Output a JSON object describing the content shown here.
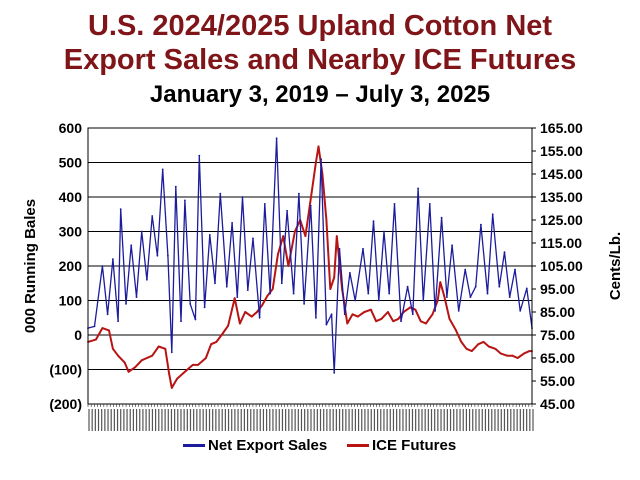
{
  "title_line1": "U.S. 2024/2025 Upland Cotton Net",
  "title_line2": "Export Sales and Nearby ICE Futures",
  "subtitle": "January 3, 2019 – July 3, 2025",
  "colors": {
    "title": "#7f1518",
    "net_export": "#1c1c9c",
    "ice": "#b81414"
  },
  "chart_data": {
    "type": "line",
    "left_axis": {
      "label": "000 Running Bales",
      "ticks": [
        "600",
        "500",
        "400",
        "300",
        "200",
        "100",
        "0",
        "(100)",
        "(200)"
      ],
      "ylim": [
        -200,
        600
      ]
    },
    "right_axis": {
      "label": "Cents/Lb.",
      "ticks": [
        "165.00",
        "155.00",
        "145.00",
        "135.00",
        "125.00",
        "115.00",
        "105.00",
        "95.00",
        "85.00",
        "75.00",
        "65.00",
        "55.00",
        "45.00"
      ],
      "ylim": [
        45,
        165
      ]
    },
    "x_range": [
      "2019-01-03",
      "2025-07-03"
    ],
    "grid": "horizontal",
    "legend_position": "bottom",
    "series": [
      {
        "name": "Net Export Sales",
        "axis": "left",
        "points": [
          [
            "2019-01-03",
            20
          ],
          [
            "2019-02-07",
            25
          ],
          [
            "2019-03-21",
            200
          ],
          [
            "2019-04-18",
            60
          ],
          [
            "2019-05-16",
            220
          ],
          [
            "2019-06-13",
            40
          ],
          [
            "2019-06-27",
            365
          ],
          [
            "2019-07-25",
            90
          ],
          [
            "2019-08-22",
            260
          ],
          [
            "2019-09-19",
            110
          ],
          [
            "2019-10-17",
            300
          ],
          [
            "2019-11-14",
            160
          ],
          [
            "2019-12-12",
            345
          ],
          [
            "2020-01-09",
            230
          ],
          [
            "2020-02-06",
            480
          ],
          [
            "2020-03-05",
            230
          ],
          [
            "2020-03-26",
            -50
          ],
          [
            "2020-04-16",
            430
          ],
          [
            "2020-05-14",
            40
          ],
          [
            "2020-06-04",
            390
          ],
          [
            "2020-07-02",
            90
          ],
          [
            "2020-07-30",
            45
          ],
          [
            "2020-08-20",
            520
          ],
          [
            "2020-09-17",
            80
          ],
          [
            "2020-10-15",
            290
          ],
          [
            "2020-11-12",
            150
          ],
          [
            "2020-12-10",
            410
          ],
          [
            "2021-01-14",
            140
          ],
          [
            "2021-02-11",
            325
          ],
          [
            "2021-03-11",
            110
          ],
          [
            "2021-04-08",
            400
          ],
          [
            "2021-05-06",
            130
          ],
          [
            "2021-06-03",
            280
          ],
          [
            "2021-07-08",
            50
          ],
          [
            "2021-08-05",
            380
          ],
          [
            "2021-09-02",
            120
          ],
          [
            "2021-10-07",
            570
          ],
          [
            "2021-11-04",
            150
          ],
          [
            "2021-12-02",
            360
          ],
          [
            "2022-01-06",
            120
          ],
          [
            "2022-02-03",
            410
          ],
          [
            "2022-03-03",
            90
          ],
          [
            "2022-04-07",
            375
          ],
          [
            "2022-05-05",
            50
          ],
          [
            "2022-06-02",
            510
          ],
          [
            "2022-06-30",
            30
          ],
          [
            "2022-07-28",
            60
          ],
          [
            "2022-08-11",
            -110
          ],
          [
            "2022-09-08",
            250
          ],
          [
            "2022-10-06",
            60
          ],
          [
            "2022-11-03",
            180
          ],
          [
            "2022-12-01",
            100
          ],
          [
            "2023-01-12",
            250
          ],
          [
            "2023-02-09",
            120
          ],
          [
            "2023-03-09",
            330
          ],
          [
            "2023-04-06",
            100
          ],
          [
            "2023-05-04",
            300
          ],
          [
            "2023-06-01",
            120
          ],
          [
            "2023-06-29",
            380
          ],
          [
            "2023-08-03",
            40
          ],
          [
            "2023-09-07",
            140
          ],
          [
            "2023-10-05",
            60
          ],
          [
            "2023-11-02",
            425
          ],
          [
            "2023-11-30",
            100
          ],
          [
            "2024-01-04",
            380
          ],
          [
            "2024-02-01",
            70
          ],
          [
            "2024-03-07",
            340
          ],
          [
            "2024-04-04",
            110
          ],
          [
            "2024-05-02",
            260
          ],
          [
            "2024-06-06",
            70
          ],
          [
            "2024-07-11",
            190
          ],
          [
            "2024-08-08",
            110
          ],
          [
            "2024-09-05",
            140
          ],
          [
            "2024-10-03",
            320
          ],
          [
            "2024-11-07",
            120
          ],
          [
            "2024-12-05",
            350
          ],
          [
            "2025-01-09",
            140
          ],
          [
            "2025-02-06",
            240
          ],
          [
            "2025-03-06",
            110
          ],
          [
            "2025-04-03",
            190
          ],
          [
            "2025-05-01",
            70
          ],
          [
            "2025-06-05",
            135
          ],
          [
            "2025-07-03",
            20
          ]
        ]
      },
      {
        "name": "ICE Futures",
        "axis": "right",
        "points": [
          [
            "2019-01-03",
            72
          ],
          [
            "2019-02-14",
            73
          ],
          [
            "2019-03-21",
            78
          ],
          [
            "2019-04-25",
            77
          ],
          [
            "2019-05-16",
            69
          ],
          [
            "2019-06-13",
            66
          ],
          [
            "2019-07-18",
            63
          ],
          [
            "2019-08-08",
            59
          ],
          [
            "2019-09-12",
            61
          ],
          [
            "2019-10-17",
            64
          ],
          [
            "2019-11-14",
            65
          ],
          [
            "2019-12-12",
            66
          ],
          [
            "2020-01-16",
            70
          ],
          [
            "2020-02-20",
            69
          ],
          [
            "2020-03-12",
            58
          ],
          [
            "2020-03-26",
            52
          ],
          [
            "2020-04-23",
            56
          ],
          [
            "2020-06-04",
            59
          ],
          [
            "2020-07-16",
            62
          ],
          [
            "2020-08-13",
            62
          ],
          [
            "2020-09-24",
            65
          ],
          [
            "2020-10-22",
            71
          ],
          [
            "2020-11-19",
            72
          ],
          [
            "2020-12-17",
            75
          ],
          [
            "2021-01-21",
            79
          ],
          [
            "2021-02-25",
            91
          ],
          [
            "2021-03-25",
            80
          ],
          [
            "2021-04-22",
            85
          ],
          [
            "2021-05-27",
            83
          ],
          [
            "2021-06-24",
            85
          ],
          [
            "2021-07-22",
            88
          ],
          [
            "2021-08-19",
            92
          ],
          [
            "2021-09-16",
            95
          ],
          [
            "2021-10-14",
            110
          ],
          [
            "2021-11-11",
            118
          ],
          [
            "2021-12-09",
            105
          ],
          [
            "2022-01-13",
            120
          ],
          [
            "2022-02-10",
            125
          ],
          [
            "2022-03-10",
            118
          ],
          [
            "2022-04-14",
            138
          ],
          [
            "2022-05-05",
            150
          ],
          [
            "2022-05-19",
            157
          ],
          [
            "2022-06-09",
            145
          ],
          [
            "2022-06-30",
            125
          ],
          [
            "2022-07-21",
            95
          ],
          [
            "2022-08-11",
            100
          ],
          [
            "2022-08-25",
            118
          ],
          [
            "2022-09-22",
            95
          ],
          [
            "2022-10-20",
            80
          ],
          [
            "2022-11-17",
            84
          ],
          [
            "2022-12-15",
            83
          ],
          [
            "2023-01-19",
            85
          ],
          [
            "2023-02-23",
            86
          ],
          [
            "2023-03-23",
            81
          ],
          [
            "2023-04-20",
            82
          ],
          [
            "2023-05-25",
            85
          ],
          [
            "2023-06-22",
            81
          ],
          [
            "2023-07-20",
            82
          ],
          [
            "2023-08-17",
            85
          ],
          [
            "2023-09-21",
            87
          ],
          [
            "2023-10-19",
            86
          ],
          [
            "2023-11-16",
            81
          ],
          [
            "2023-12-14",
            80
          ],
          [
            "2024-01-18",
            84
          ],
          [
            "2024-02-15",
            90
          ],
          [
            "2024-02-29",
            98
          ],
          [
            "2024-03-21",
            92
          ],
          [
            "2024-04-18",
            82
          ],
          [
            "2024-05-23",
            77
          ],
          [
            "2024-06-20",
            72
          ],
          [
            "2024-07-18",
            69
          ],
          [
            "2024-08-15",
            68
          ],
          [
            "2024-09-19",
            71
          ],
          [
            "2024-10-17",
            72
          ],
          [
            "2024-11-14",
            70
          ],
          [
            "2024-12-19",
            69
          ],
          [
            "2025-01-16",
            67
          ],
          [
            "2025-02-20",
            66
          ],
          [
            "2025-03-20",
            66
          ],
          [
            "2025-04-17",
            65
          ],
          [
            "2025-05-22",
            67
          ],
          [
            "2025-06-19",
            68
          ],
          [
            "2025-07-03",
            68
          ]
        ]
      }
    ],
    "x_tick_count": 140
  }
}
